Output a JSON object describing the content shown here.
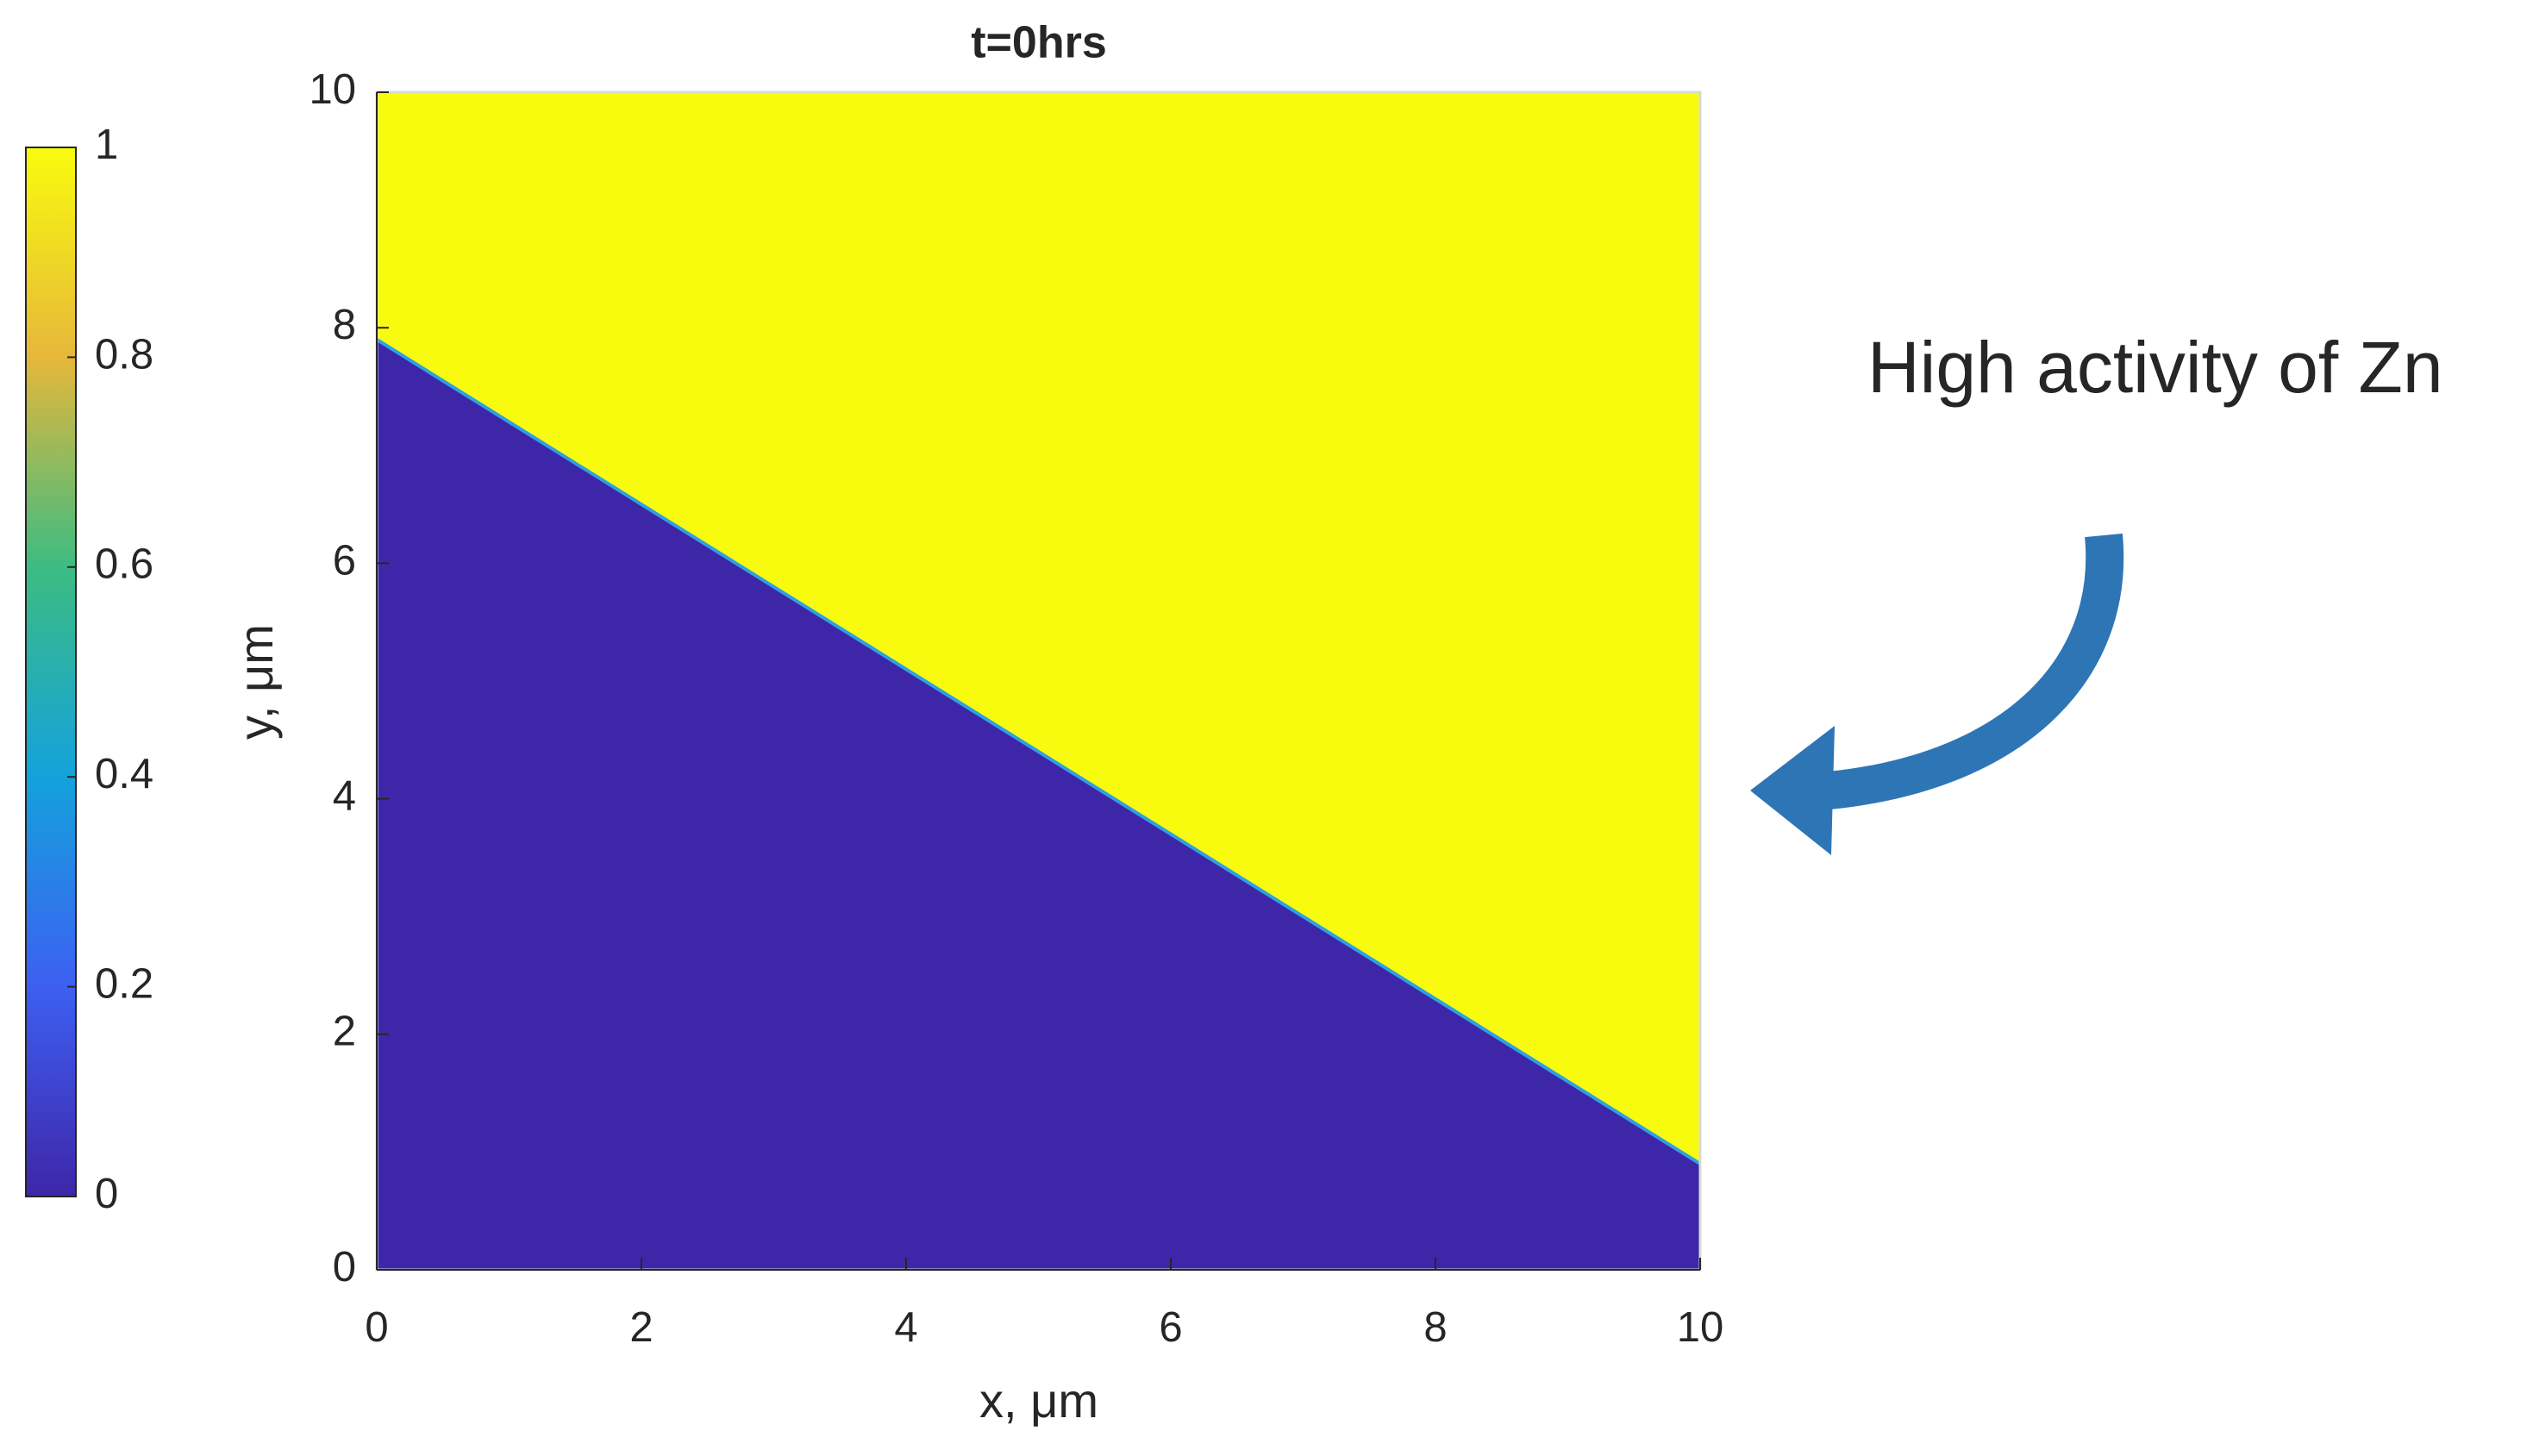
{
  "chart_data": {
    "type": "heatmap",
    "title": "t=0hrs",
    "x_label": "x, μm",
    "y_label": "y, μm",
    "x": [
      0,
      10
    ],
    "interface_y": [
      7.9,
      0.9
    ],
    "upper_value": 1,
    "lower_value": 0,
    "xlim": [
      0,
      10
    ],
    "ylim": [
      0,
      10
    ],
    "xticks": [
      0,
      2,
      4,
      6,
      8,
      10
    ],
    "yticks": [
      0,
      2,
      4,
      6,
      8,
      10
    ],
    "clim": [
      0,
      1
    ],
    "cticks": [
      0,
      0.2,
      0.4,
      0.6,
      0.8,
      1
    ],
    "colormap": [
      "#3e26a8",
      "#3d5ff2",
      "#14a2dc",
      "#3cbc82",
      "#e6b73a",
      "#f9fb0e"
    ],
    "interface_color": "#2fa0e0",
    "annotation": "High activity of Zn"
  }
}
